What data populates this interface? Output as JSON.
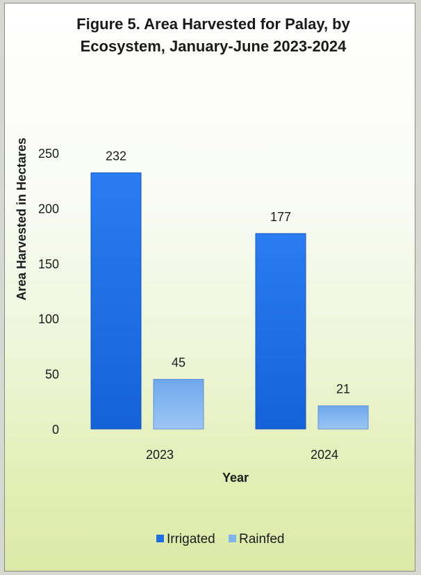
{
  "chart_data": {
    "type": "bar",
    "title": "Figure 5. Area Harvested for Palay, by Ecosystem, January-June 2023-2024",
    "categories": [
      "2023",
      "2024"
    ],
    "series": [
      {
        "name": "Irrigated",
        "values": [
          232,
          177
        ],
        "color": "#1c6fe6"
      },
      {
        "name": "Rainfed",
        "values": [
          45,
          21
        ],
        "color": "#7fb4ee"
      }
    ],
    "xlabel": "Year",
    "ylabel": "Area Harvested in Hectares",
    "ylim": [
      0,
      250
    ],
    "yticks": [
      "0",
      "50",
      "100",
      "150",
      "200",
      "250"
    ],
    "grid": false,
    "legend": "bottom"
  }
}
